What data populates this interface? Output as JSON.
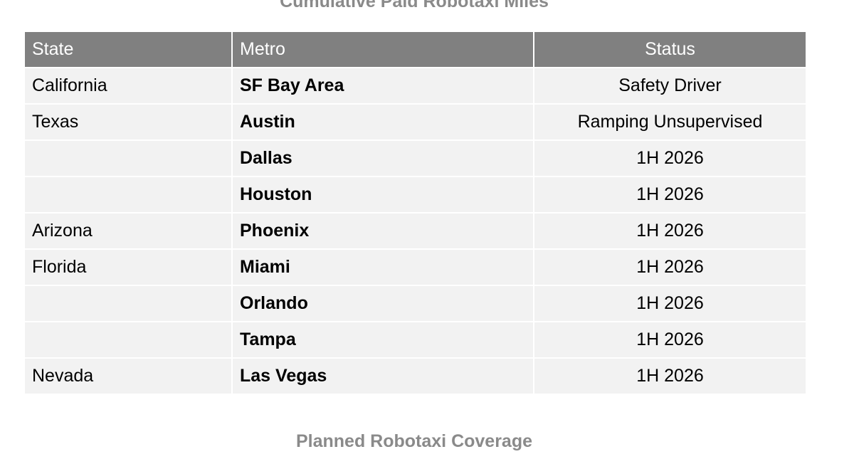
{
  "title": "Cumulative Paid Robotaxi Miles",
  "table": {
    "header": [
      "State",
      "Metro",
      "Status"
    ],
    "rows": [
      [
        "California",
        "SF Bay Area",
        "Safety Driver"
      ],
      [
        "Texas",
        "Austin",
        "Ramping Unsupervised"
      ],
      [
        null,
        "Dallas",
        "1H 2026"
      ],
      [
        null,
        "Houston",
        "1H 2026"
      ],
      [
        "Arizona",
        "Phoenix",
        "1H 2026"
      ],
      [
        "Florida",
        "Miami",
        "1H 2026"
      ],
      [
        null,
        "Orlando",
        "1H 2026"
      ],
      [
        null,
        "Tampa",
        "1H 2026"
      ],
      [
        "Nevada",
        "Las Vegas",
        "1H 2026"
      ]
    ]
  },
  "caption": "Planned Robotaxi Coverage"
}
